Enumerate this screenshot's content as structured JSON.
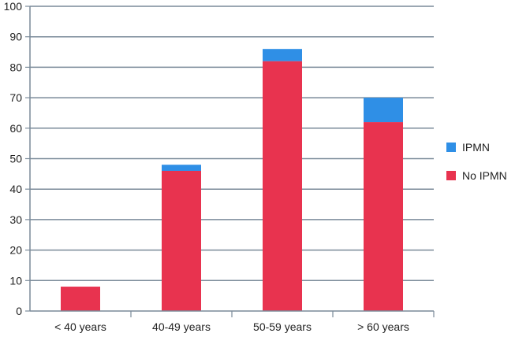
{
  "chart_data": {
    "type": "bar",
    "stacked": true,
    "categories": [
      "< 40 years",
      "40-49 years",
      "50-59 years",
      "> 60 years"
    ],
    "series": [
      {
        "name": "No IPMN",
        "values": [
          8,
          46,
          82,
          62
        ],
        "color": "#e8334f"
      },
      {
        "name": "IPMN",
        "values": [
          0,
          2,
          4,
          8
        ],
        "color": "#2f8fe6"
      }
    ],
    "title": "",
    "xlabel": "",
    "ylabel": "",
    "ylim": [
      0,
      100
    ],
    "yticks": [
      "0",
      "10",
      "20",
      "30",
      "40",
      "50",
      "60",
      "70",
      "80",
      "90",
      "100"
    ],
    "grid": true,
    "legend": {
      "position": "right",
      "entries": [
        {
          "label": "IPMN",
          "color": "#2f8fe6"
        },
        {
          "label": "No IPMN",
          "color": "#e8334f"
        }
      ]
    }
  }
}
